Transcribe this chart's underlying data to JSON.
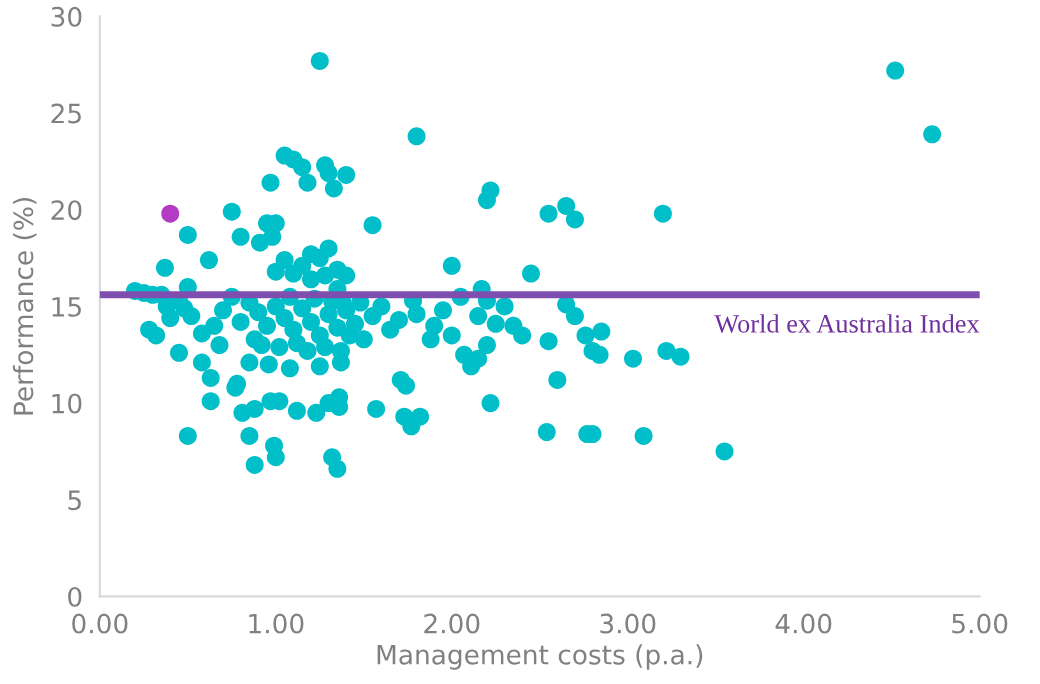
{
  "chart_data": {
    "type": "scatter",
    "xlabel": "Management costs (p.a.)",
    "ylabel": "Performance (%)",
    "xlim": [
      0,
      5
    ],
    "xticks": [
      {
        "value": 0,
        "label": "0.00"
      },
      {
        "value": 1,
        "label": "1.00"
      },
      {
        "value": 2,
        "label": "2.00"
      },
      {
        "value": 3,
        "label": "3.00"
      },
      {
        "value": 4,
        "label": "4.00"
      },
      {
        "value": 5,
        "label": "5.00"
      }
    ],
    "ylim": [
      0,
      30
    ],
    "yticks": [
      0,
      5,
      10,
      15,
      20,
      25,
      30
    ],
    "grid": false,
    "legend": false,
    "marker": "circle",
    "ref_lines": [
      {
        "axis": "y",
        "value": 15.6,
        "label": "World ex Australia Index",
        "color": "#7f4fb0"
      }
    ],
    "series": [
      {
        "color": "#00bfc8",
        "x": [
          1.25,
          4.52,
          4.73,
          1.8,
          2.2,
          2.22,
          2.55,
          2.65,
          2.7,
          3.2,
          1.05,
          1.1,
          1.15,
          1.18,
          1.28,
          1.3,
          1.33,
          1.4,
          0.97,
          0.75,
          0.8,
          0.95,
          1.0,
          0.98,
          0.91,
          0.62,
          0.5,
          0.37,
          0.5,
          1.55,
          1.3,
          1.2,
          1.25,
          1.05,
          1.15,
          1.0,
          1.35,
          1.28,
          1.4,
          1.1,
          1.2,
          2.0,
          2.45,
          1.35,
          0.5,
          0.85,
          0.88,
          0.99,
          1.0,
          1.32,
          1.35,
          0.81,
          0.88,
          0.97,
          1.02,
          1.12,
          1.23,
          1.3,
          1.36,
          1.36,
          1.57,
          0.63,
          0.77,
          0.78,
          0.63,
          0.58,
          0.45,
          0.68,
          0.85,
          0.96,
          1.08,
          1.25,
          1.37,
          1.37,
          1.71,
          1.74,
          1.73,
          1.77,
          1.82,
          2.22,
          2.11,
          2.07,
          2.54,
          2.77,
          2.8,
          3.09,
          3.55,
          2.6,
          2.8,
          2.84,
          3.03,
          3.22,
          3.3,
          2.55,
          2.76,
          2.85,
          2.7,
          2.65,
          2.17,
          2.2,
          2.3,
          2.15,
          2.25,
          2.35,
          2.4,
          2.2,
          2.15,
          1.9,
          2.0,
          1.95,
          2.05,
          1.8,
          1.7,
          1.65,
          1.55,
          1.6,
          1.78,
          1.88,
          0.2,
          0.25,
          0.3,
          0.35,
          0.28,
          0.32,
          0.4,
          0.48,
          0.52,
          0.38,
          0.45,
          0.85,
          0.9,
          0.95,
          1.0,
          1.05,
          1.1,
          1.15,
          1.2,
          1.25,
          1.3,
          1.35,
          1.4,
          1.45,
          1.5,
          0.88,
          0.92,
          1.02,
          1.12,
          1.18,
          1.28,
          1.42,
          1.48,
          0.8,
          0.75,
          1.08,
          1.22,
          1.32,
          1.38,
          0.7,
          0.65,
          0.58
        ],
        "values": [
          27.7,
          27.2,
          23.9,
          23.8,
          20.5,
          21.0,
          19.8,
          20.2,
          19.5,
          19.8,
          22.8,
          22.6,
          22.2,
          21.4,
          22.3,
          21.9,
          21.1,
          21.8,
          21.4,
          19.9,
          18.6,
          19.3,
          19.3,
          18.6,
          18.3,
          17.4,
          18.7,
          17.0,
          16.0,
          19.2,
          18.0,
          17.7,
          17.5,
          17.4,
          17.1,
          16.8,
          16.9,
          16.6,
          16.6,
          16.7,
          16.4,
          17.1,
          16.7,
          15.9,
          8.3,
          8.3,
          6.8,
          7.8,
          7.2,
          7.2,
          6.6,
          9.5,
          9.7,
          10.1,
          10.1,
          9.6,
          9.5,
          10.0,
          10.3,
          9.8,
          9.7,
          10.1,
          10.8,
          11.0,
          11.3,
          12.1,
          12.6,
          13.0,
          12.1,
          12.0,
          11.8,
          11.9,
          12.1,
          12.7,
          11.2,
          10.9,
          9.3,
          8.8,
          9.3,
          10.0,
          11.9,
          12.5,
          8.5,
          8.4,
          8.4,
          8.3,
          7.5,
          11.2,
          12.7,
          12.5,
          12.3,
          12.7,
          12.4,
          13.2,
          13.5,
          13.7,
          14.5,
          15.1,
          15.9,
          15.3,
          15.0,
          14.5,
          14.1,
          14.0,
          13.5,
          13.0,
          12.3,
          14.0,
          13.5,
          14.8,
          15.5,
          14.6,
          14.3,
          13.8,
          14.5,
          15.0,
          15.3,
          13.3,
          15.8,
          15.7,
          15.6,
          15.6,
          13.8,
          13.5,
          14.4,
          14.9,
          14.5,
          15.0,
          15.3,
          15.2,
          14.7,
          14.0,
          15.0,
          14.4,
          13.8,
          14.9,
          14.2,
          13.5,
          14.6,
          13.9,
          14.8,
          14.1,
          13.3,
          13.3,
          13.0,
          12.9,
          13.1,
          12.7,
          12.9,
          13.5,
          15.2,
          14.2,
          15.5,
          15.5,
          15.4,
          15.3,
          15.2,
          14.8,
          14.0,
          13.6
        ]
      },
      {
        "color": "#b43cc4",
        "x": [
          0.4
        ],
        "values": [
          19.8
        ]
      }
    ]
  }
}
